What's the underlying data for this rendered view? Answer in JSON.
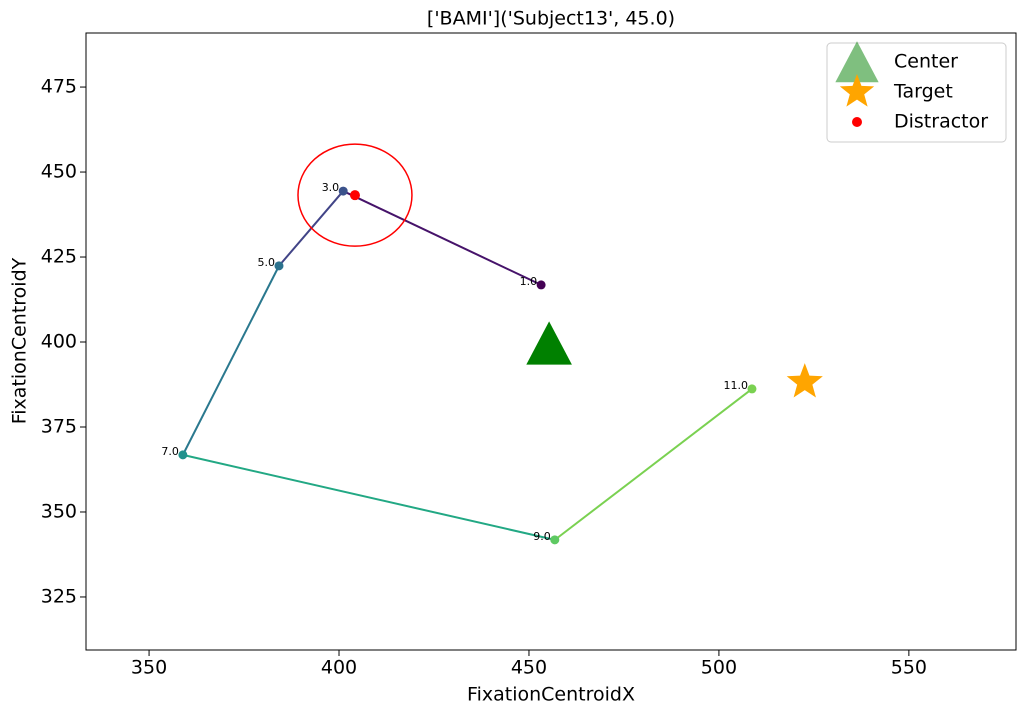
{
  "chart_data": {
    "type": "scatter",
    "title": "['BAMI']('Subject13', 45.0)",
    "x_label": "FixationCentroidX",
    "y_label": "FixationCentroidY",
    "xlim": [
      333.4,
      578.2
    ],
    "ylim": [
      309.4,
      490.9
    ],
    "xticks": [
      350,
      400,
      450,
      500,
      550
    ],
    "yticks": [
      325,
      350,
      375,
      400,
      425,
      450,
      475
    ],
    "legend": "upper right",
    "path": {
      "x": [
        453.2,
        401.1,
        384.2,
        358.9,
        456.8,
        508.7
      ],
      "values": [
        416.8,
        444.4,
        422.4,
        366.8,
        341.8,
        386.2
      ],
      "labels": [
        "1.0",
        "3.0",
        "5.0",
        "7.0",
        "9.0",
        "11.0"
      ],
      "colors": [
        "#440154",
        "#3b528b",
        "#2c728e",
        "#21918c",
        "#5ec962",
        "#7ad151"
      ],
      "segment_colors": [
        "#46136a",
        "#414487",
        "#2a788e",
        "#22a884",
        "#7ad151"
      ]
    },
    "series": [
      {
        "name": "Center",
        "color": "#008000",
        "marker": "triangle",
        "x": [
          455.3
        ],
        "values": [
          399.0
        ]
      },
      {
        "name": "Target",
        "color": "#ffa500",
        "marker": "star",
        "x": [
          522.6
        ],
        "values": [
          388.2
        ]
      },
      {
        "name": "Distractor",
        "color": "#ff0000",
        "marker": "circle",
        "x": [
          404.2
        ],
        "values": [
          443.2
        ],
        "radius": 15
      }
    ]
  }
}
